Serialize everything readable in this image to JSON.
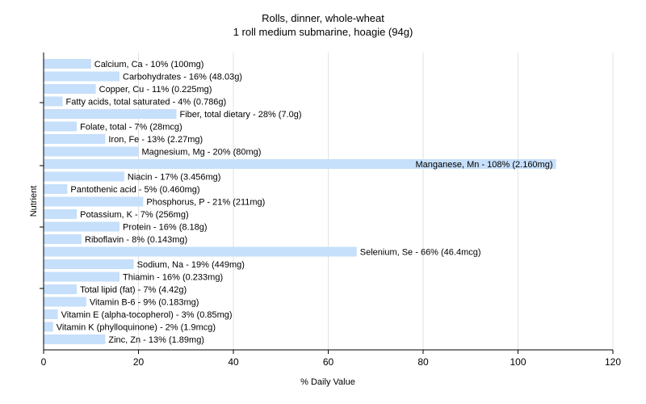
{
  "chart_data": {
    "type": "bar",
    "orientation": "horizontal",
    "title": "Rolls, dinner, whole-wheat",
    "subtitle": "1 roll medium submarine, hoagie (94g)",
    "xlabel": "% Daily Value",
    "ylabel": "Nutrient",
    "xlim": [
      0,
      120
    ],
    "xticks": [
      "0",
      "20",
      "40",
      "60",
      "80",
      "100",
      "120"
    ],
    "grid": true,
    "bar_color": "#c6dffa",
    "grid_color": "#e2e2e2",
    "categories": [
      "Calcium, Ca",
      "Carbohydrates",
      "Copper, Cu",
      "Fatty acids, total saturated",
      "Fiber, total dietary",
      "Folate, total",
      "Iron, Fe",
      "Magnesium, Mg",
      "Manganese, Mn",
      "Niacin",
      "Pantothenic acid",
      "Phosphorus, P",
      "Potassium, K",
      "Protein",
      "Riboflavin",
      "Selenium, Se",
      "Sodium, Na",
      "Thiamin",
      "Total lipid (fat)",
      "Vitamin B-6",
      "Vitamin E (alpha-tocopherol)",
      "Vitamin K (phylloquinone)",
      "Zinc, Zn"
    ],
    "values": [
      10,
      16,
      11,
      4,
      28,
      7,
      13,
      20,
      108,
      17,
      5,
      21,
      7,
      16,
      8,
      66,
      19,
      16,
      7,
      9,
      3,
      2,
      13
    ],
    "labels": [
      "Calcium, Ca - 10% (100mg)",
      "Carbohydrates - 16% (48.03g)",
      "Copper, Cu - 11% (0.225mg)",
      "Fatty acids, total saturated - 4% (0.786g)",
      "Fiber, total dietary - 28% (7.0g)",
      "Folate, total - 7% (28mcg)",
      "Iron, Fe - 13% (2.27mg)",
      "Magnesium, Mg - 20% (80mg)",
      "Manganese, Mn - 108% (2.160mg)",
      "Niacin - 17% (3.456mg)",
      "Pantothenic acid - 5% (0.460mg)",
      "Phosphorus, P - 21% (211mg)",
      "Potassium, K - 7% (256mg)",
      "Protein - 16% (8.18g)",
      "Riboflavin - 8% (0.143mg)",
      "Selenium, Se - 66% (46.4mcg)",
      "Sodium, Na - 19% (449mg)",
      "Thiamin - 16% (0.233mg)",
      "Total lipid (fat) - 7% (4.42g)",
      "Vitamin B-6 - 9% (0.183mg)",
      "Vitamin E (alpha-tocopherol) - 3% (0.85mg)",
      "Vitamin K (phylloquinone) - 2% (1.9mcg)",
      "Zinc, Zn - 13% (1.89mg)"
    ]
  }
}
